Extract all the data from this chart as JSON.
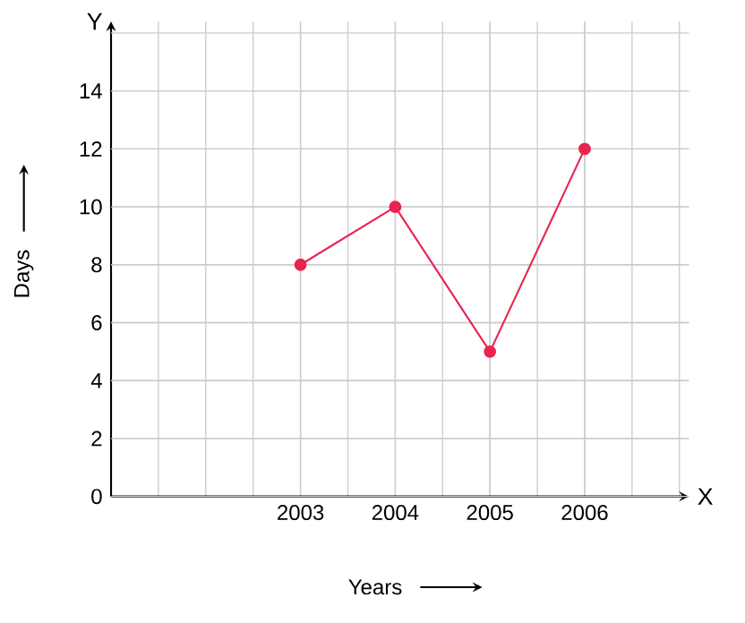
{
  "chart_data": {
    "type": "line",
    "xlabel": "Years",
    "ylabel": "Days",
    "annotations": [
      "Y",
      "X"
    ],
    "categories": [
      "2003",
      "2004",
      "2005",
      "2006"
    ],
    "values": [
      8,
      10,
      5,
      12
    ],
    "color": "#e8254f",
    "marker": "circle",
    "line_style": "solid",
    "grid": true,
    "ylim": [
      0,
      16.4
    ],
    "yticks": [
      0,
      2,
      4,
      6,
      8,
      10,
      12,
      14
    ]
  }
}
